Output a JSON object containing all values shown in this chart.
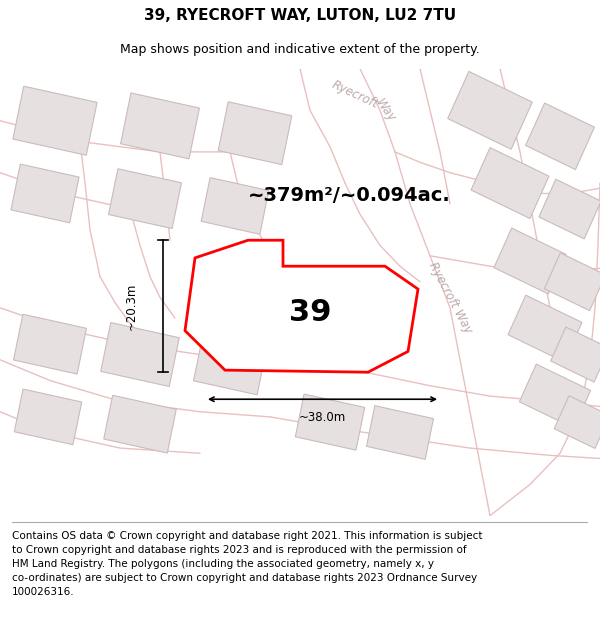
{
  "title": "39, RYECROFT WAY, LUTON, LU2 7TU",
  "subtitle": "Map shows position and indicative extent of the property.",
  "footer": "Contains OS data © Crown copyright and database right 2021. This information is subject\nto Crown copyright and database rights 2023 and is reproduced with the permission of\nHM Land Registry. The polygons (including the associated geometry, namely x, y\nco-ordinates) are subject to Crown copyright and database rights 2023 Ordnance Survey\n100026316.",
  "area_text": "~379m²/~0.094ac.",
  "property_number": "39",
  "dim_width": "~38.0m",
  "dim_height": "~20.3m",
  "map_bg": "#f2eeee",
  "road_color": "#e8c0c0",
  "building_fill": "#e6e0e0",
  "building_stroke": "#ccbbbb",
  "title_fontsize": 11,
  "subtitle_fontsize": 9,
  "footer_fontsize": 7.5,
  "street_label_color": "#bbaaaa"
}
